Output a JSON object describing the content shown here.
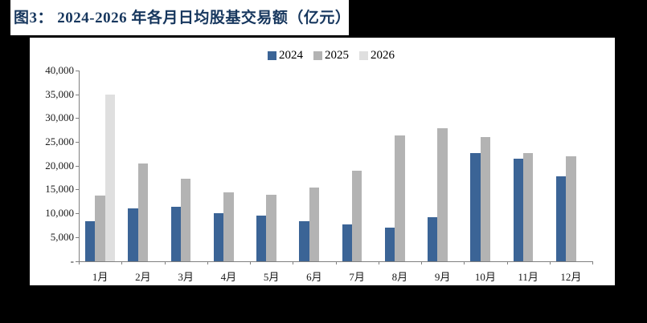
{
  "figure": {
    "title": "图3：  2024-2026 年各月日均股基交易额（亿元）"
  },
  "colors": {
    "background": "#000000",
    "panel": "#FFFFFF",
    "title_text": "#17375E",
    "axis": "#808080",
    "label_text": "#1A1A1A",
    "series_2024": "#3B6496",
    "series_2025": "#B3B3B3",
    "series_2026": "#DFDFDF"
  },
  "chart_data": {
    "type": "bar",
    "title": "图3：2024-2026 年各月日均股基交易额（亿元）",
    "xlabel": "",
    "ylabel": "",
    "categories": [
      "1月",
      "2月",
      "3月",
      "4月",
      "5月",
      "6月",
      "7月",
      "8月",
      "9月",
      "10月",
      "11月",
      "12月"
    ],
    "series": [
      {
        "name": "2024",
        "color": "#3B6496",
        "values": [
          8400,
          11000,
          11300,
          10100,
          9500,
          8300,
          7700,
          7000,
          9200,
          22600,
          21500,
          17800
        ]
      },
      {
        "name": "2025",
        "color": "#B3B3B3",
        "values": [
          13700,
          20500,
          17200,
          14400,
          13900,
          15400,
          18900,
          26300,
          27800,
          26000,
          22600,
          22000
        ]
      },
      {
        "name": "2026",
        "color": "#DFDFDF",
        "values": [
          34900,
          null,
          null,
          null,
          null,
          null,
          null,
          null,
          null,
          null,
          null,
          null
        ]
      }
    ],
    "ylim": [
      0,
      40000
    ],
    "y_tick_step": 5000,
    "y_tick_labels_top_down": [
      "40,000",
      "35,000",
      "30,000",
      "25,000",
      "20,000",
      "15,000",
      "10,000",
      "5,000",
      "-"
    ],
    "grid": false,
    "legend_position": "top-center"
  }
}
